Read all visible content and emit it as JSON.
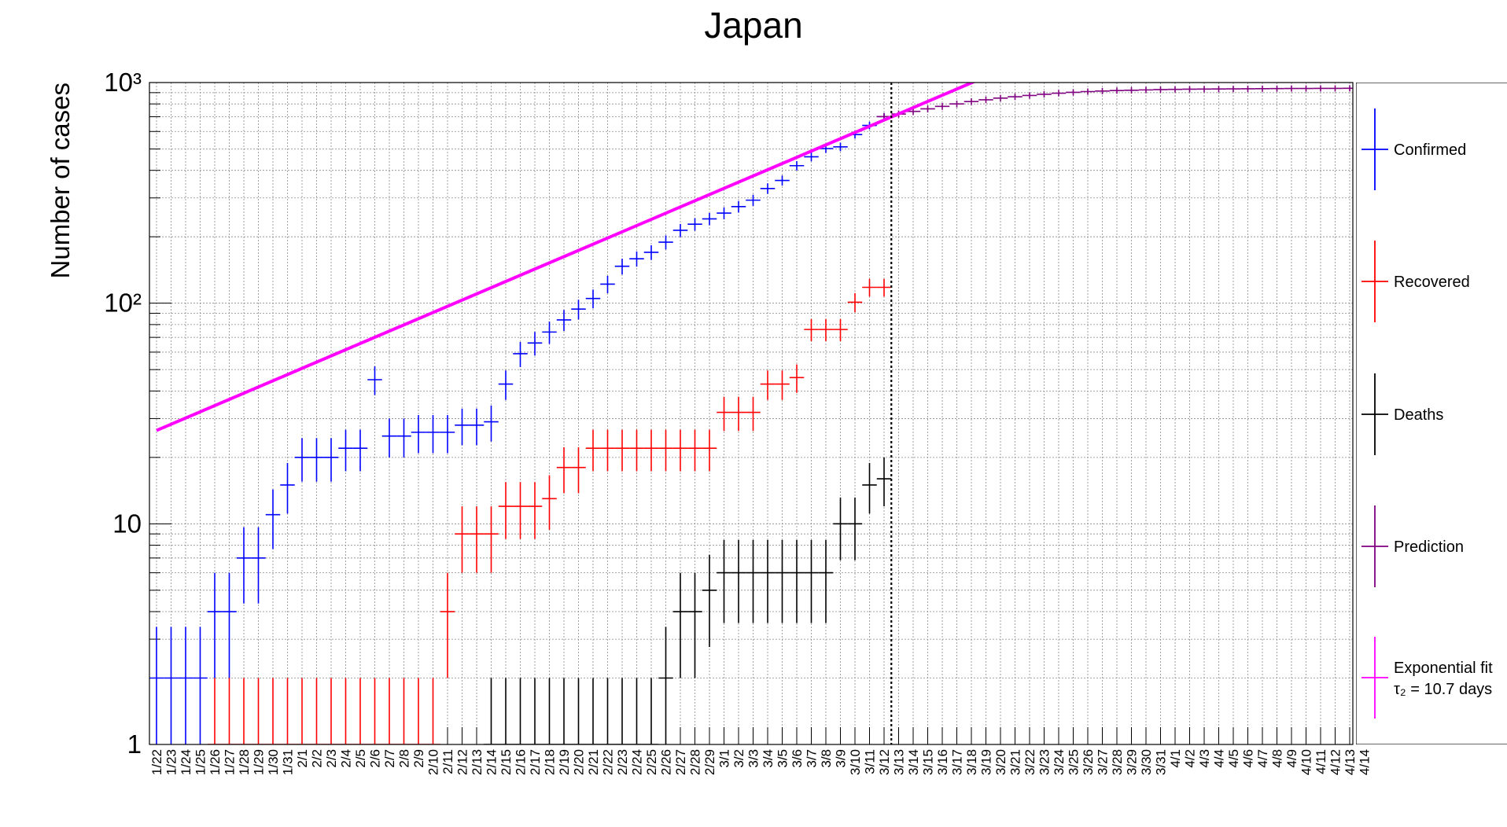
{
  "chart_data": {
    "type": "scatter",
    "title": "Japan",
    "xlabel": "",
    "ylabel": "Number of cases",
    "yscale": "log",
    "ylim": [
      1,
      1000
    ],
    "yticks": [
      {
        "value": 1,
        "label": "1"
      },
      {
        "value": 10,
        "label": "10"
      },
      {
        "value": 100,
        "label": "10²"
      },
      {
        "value": 1000,
        "label": "10³"
      }
    ],
    "grid": true,
    "legend_position": "right",
    "categories": [
      "1/22",
      "1/23",
      "1/24",
      "1/25",
      "1/26",
      "1/27",
      "1/28",
      "1/29",
      "1/30",
      "1/31",
      "2/1",
      "2/2",
      "2/3",
      "2/4",
      "2/5",
      "2/6",
      "2/7",
      "2/8",
      "2/9",
      "2/10",
      "2/11",
      "2/12",
      "2/13",
      "2/14",
      "2/15",
      "2/16",
      "2/17",
      "2/18",
      "2/19",
      "2/20",
      "2/21",
      "2/22",
      "2/23",
      "2/24",
      "2/25",
      "2/26",
      "2/27",
      "2/28",
      "2/29",
      "3/1",
      "3/2",
      "3/3",
      "3/4",
      "3/5",
      "3/6",
      "3/7",
      "3/8",
      "3/9",
      "3/10",
      "3/11",
      "3/12",
      "3/13",
      "3/14",
      "3/15",
      "3/16",
      "3/17",
      "3/18",
      "3/19",
      "3/20",
      "3/21",
      "3/22",
      "3/23",
      "3/24",
      "3/25",
      "3/26",
      "3/27",
      "3/28",
      "3/29",
      "3/30",
      "3/31",
      "4/1",
      "4/2",
      "4/3",
      "4/4",
      "4/5",
      "4/6",
      "4/7",
      "4/8",
      "4/9",
      "4/10",
      "4/11",
      "4/12",
      "4/13",
      "4/14"
    ],
    "vline_category": "3/12",
    "series": [
      {
        "name": "Confirmed",
        "color": "#0000ff",
        "values": [
          2,
          2,
          2,
          2,
          4,
          4,
          7,
          7,
          11,
          15,
          20,
          20,
          20,
          22,
          22,
          45,
          25,
          25,
          26,
          26,
          26,
          28,
          28,
          29,
          43,
          59,
          66,
          74,
          84,
          94,
          105,
          122,
          147,
          159,
          170,
          189,
          214,
          228,
          241,
          256,
          274,
          293,
          331,
          360,
          420,
          461,
          502,
          511,
          581,
          639,
          701
        ]
      },
      {
        "name": "Recovered",
        "color": "#ff0000",
        "values": [
          0,
          0,
          0,
          0,
          1,
          1,
          1,
          1,
          1,
          1,
          1,
          1,
          1,
          1,
          1,
          1,
          1,
          1,
          1,
          1,
          4,
          9,
          9,
          9,
          12,
          12,
          12,
          13,
          18,
          18,
          22,
          22,
          22,
          22,
          22,
          22,
          22,
          22,
          22,
          32,
          32,
          32,
          43,
          43,
          46,
          76,
          76,
          76,
          101,
          118,
          118
        ]
      },
      {
        "name": "Deaths",
        "color": "#000000",
        "values": [
          0,
          0,
          0,
          0,
          0,
          0,
          0,
          0,
          0,
          0,
          0,
          0,
          0,
          0,
          0,
          0,
          0,
          0,
          0,
          0,
          0,
          0,
          0,
          1,
          1,
          1,
          1,
          1,
          1,
          1,
          1,
          1,
          1,
          1,
          1,
          2,
          4,
          4,
          5,
          6,
          6,
          6,
          6,
          6,
          6,
          6,
          6,
          10,
          10,
          15,
          16
        ]
      },
      {
        "name": "Prediction",
        "color": "#800080",
        "start_category": "3/12",
        "values": [
          701,
          720,
          740,
          760,
          780,
          800,
          820,
          835,
          850,
          862,
          874,
          885,
          895,
          903,
          910,
          915,
          920,
          923,
          926,
          929,
          931,
          933,
          934,
          935,
          936,
          937,
          938,
          939,
          940,
          940,
          941,
          941,
          942,
          942
        ]
      },
      {
        "name": "Exponential fit",
        "label_line2": "τ₂ = 10.7 days",
        "color": "#ff00ff",
        "fit": {
          "start": {
            "category": "1/22",
            "value": 26.5
          },
          "doubling_days": 10.7
        }
      }
    ],
    "legend_entries": [
      {
        "label": "Confirmed",
        "color": "#0000ff"
      },
      {
        "label": "Recovered",
        "color": "#ff0000"
      },
      {
        "label": "Deaths",
        "color": "#000000"
      },
      {
        "label": "Prediction",
        "color": "#800080"
      },
      {
        "label": "Exponential fit",
        "label2": "τ₂ = 10.7 days",
        "color": "#ff00ff"
      }
    ]
  }
}
